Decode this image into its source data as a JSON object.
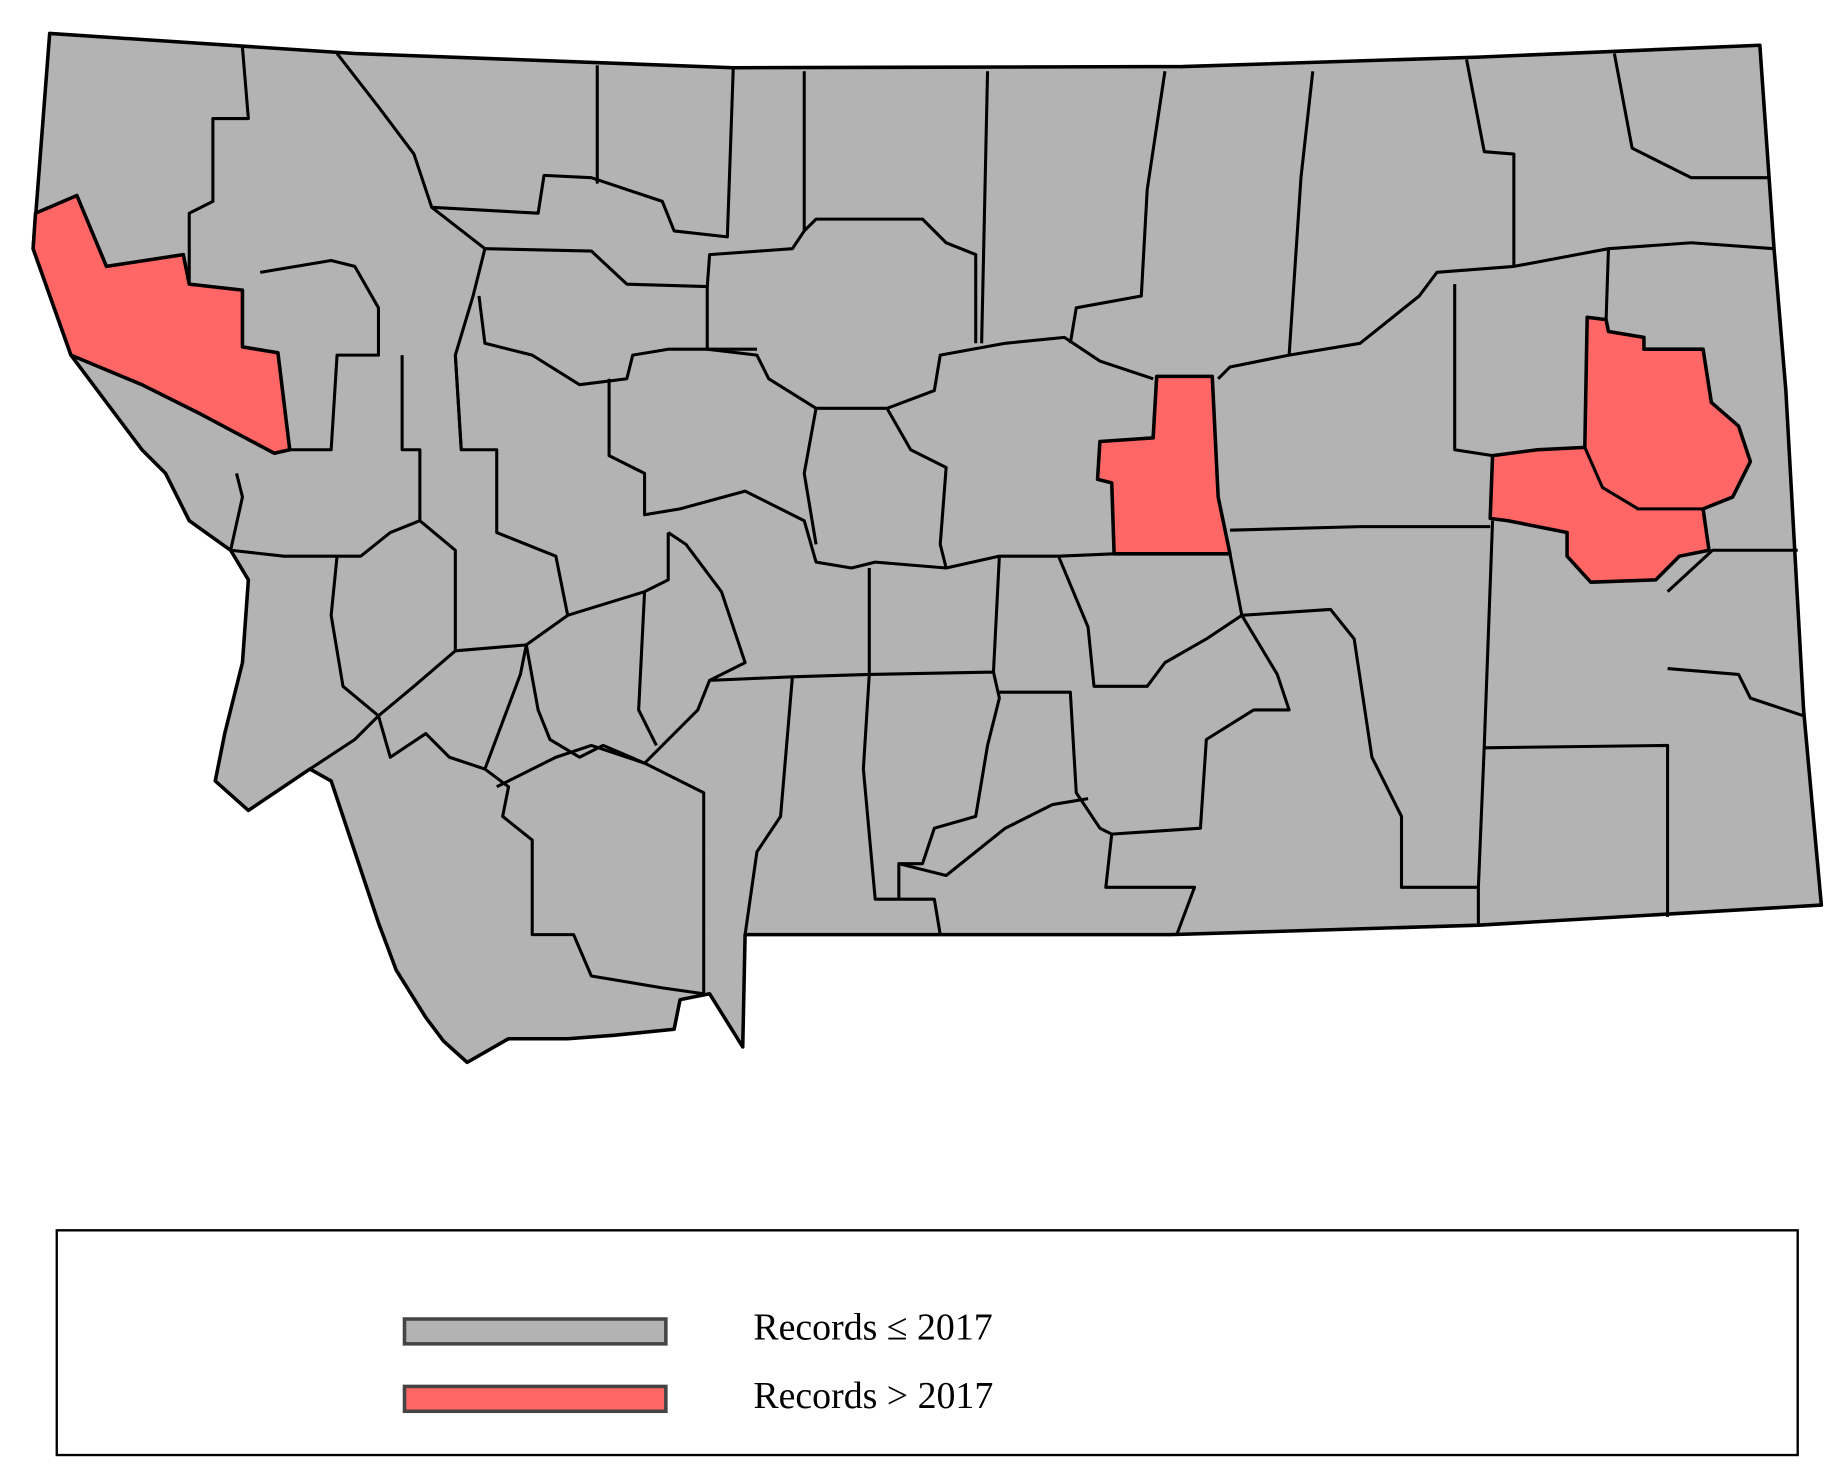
{
  "legend": {
    "items": [
      {
        "label": "Records ≤ 2017",
        "color": "#b3b3b3"
      },
      {
        "label": "Records > 2017",
        "color": "#ff6666"
      }
    ]
  }
}
